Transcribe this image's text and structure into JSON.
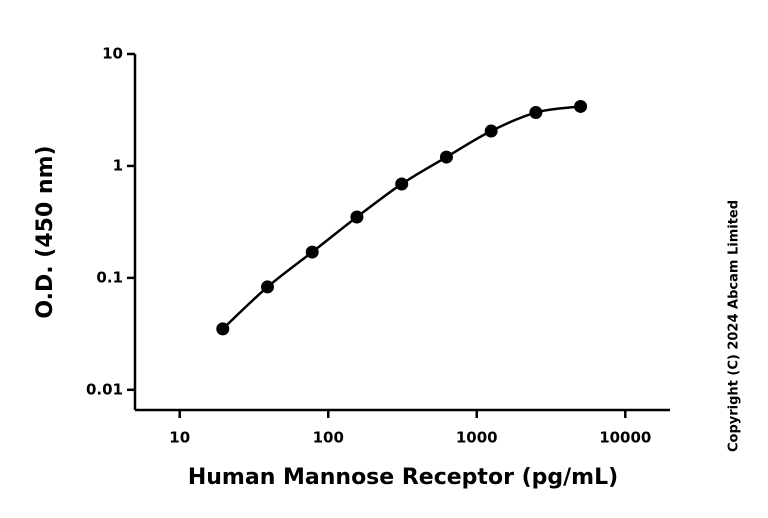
{
  "chart_data": {
    "type": "scatter",
    "x_label": "Human Mannose Receptor (pg/mL)",
    "y_label": "O.D. (450 nm)",
    "watermark": "Copyright (C) 2024 Abcam Limited",
    "log_x": true,
    "log_y": true,
    "xlim": [
      5,
      20000
    ],
    "ylim": [
      0.0066,
      10
    ],
    "xticks": [
      10,
      100,
      1000,
      10000
    ],
    "yticks": [
      0.01,
      0.1,
      1,
      10
    ],
    "fit_line": true,
    "color": "#000000",
    "x": [
      19.5,
      39,
      78,
      156,
      312.5,
      625,
      1250,
      2500,
      5000
    ],
    "values": [
      0.035,
      0.083,
      0.17,
      0.35,
      0.69,
      1.2,
      2.05,
      3.0,
      3.4
    ]
  }
}
